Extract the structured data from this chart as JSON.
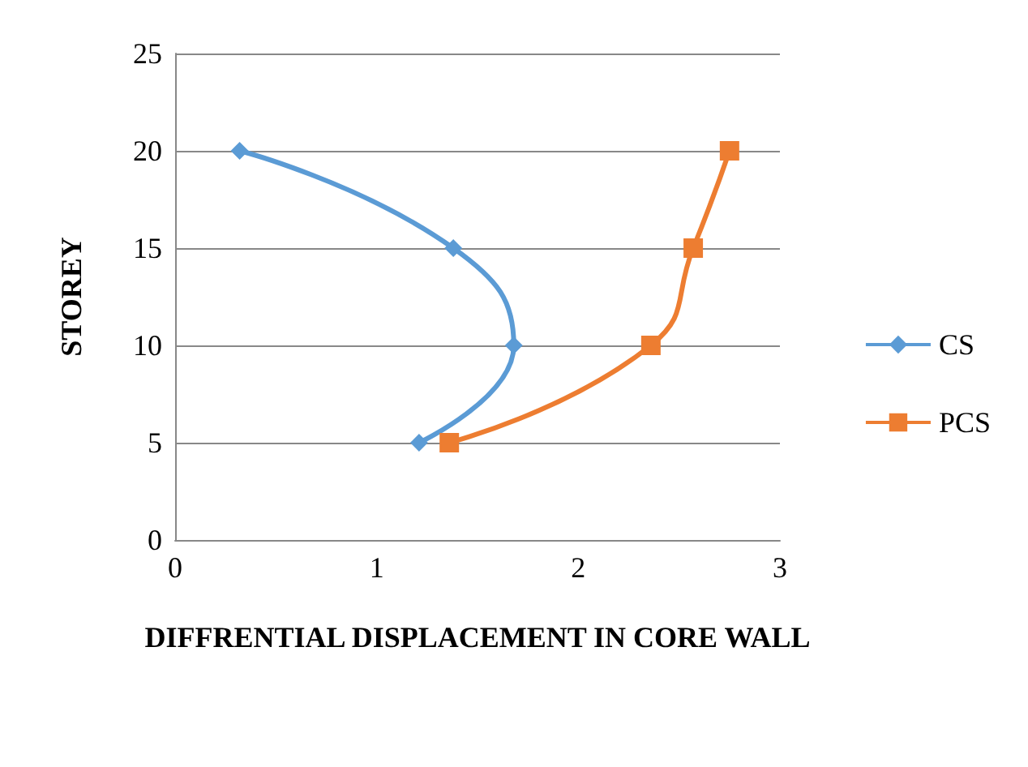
{
  "chart_data": {
    "type": "line",
    "xlabel": "DIFFRENTIAL DISPLACEMENT IN CORE WALL",
    "ylabel": "STOREY",
    "xlim": [
      0,
      3
    ],
    "xticks": [
      0,
      1,
      2,
      3
    ],
    "ylim": [
      0,
      25
    ],
    "yticks": [
      0,
      5,
      10,
      15,
      20,
      25
    ],
    "grid": "y",
    "legend": "right",
    "line_style": "solid",
    "series": [
      {
        "name": "CS",
        "color": "#5b9bd5",
        "marker": "diamond",
        "x": [
          1.21,
          1.68,
          1.38,
          0.32
        ],
        "values": [
          5,
          10,
          15,
          20
        ]
      },
      {
        "name": "PCS",
        "color": "#ed7d31",
        "marker": "square",
        "x": [
          1.36,
          2.36,
          2.57,
          2.75
        ],
        "values": [
          5,
          10,
          15,
          20
        ]
      }
    ]
  }
}
